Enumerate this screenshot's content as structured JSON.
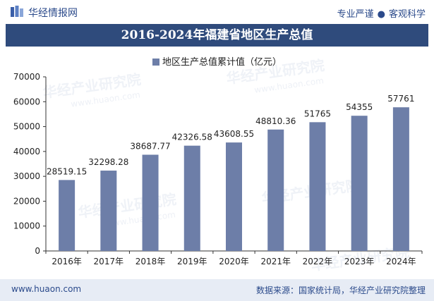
{
  "header": {
    "brand": "华经情报网",
    "tagline_left": "专业严谨",
    "tagline_right": "客观科学"
  },
  "watermark": {
    "text": "华经产业研究院",
    "url": "www.huaon.com"
  },
  "footer": {
    "site": "www.huaon.com",
    "source": "数据来源：国家统计局，华经产业研究院整理"
  },
  "colors": {
    "bar": "#6d7ea8",
    "title_bg": "#2f4b7c",
    "brand": "#2b4a8b"
  },
  "chart_data": {
    "type": "bar",
    "title": "2016-2024年福建省地区生产总值",
    "legend_position": "top-center",
    "categories": [
      "2016年",
      "2017年",
      "2018年",
      "2019年",
      "2020年",
      "2021年",
      "2022年",
      "2023年",
      "2024年"
    ],
    "series": [
      {
        "name": "地区生产总值累计值（亿元）",
        "values": [
          28519.15,
          32298.28,
          38687.77,
          42326.58,
          43608.55,
          48810.36,
          51765,
          54355,
          57761
        ],
        "labels": [
          "28519.15",
          "32298.28",
          "38687.77",
          "42326.58",
          "43608.55",
          "48810.36",
          "51765",
          "54355",
          "57761"
        ]
      }
    ],
    "y_ticks": [
      "0",
      "10000",
      "20000",
      "30000",
      "40000",
      "50000",
      "60000",
      "70000"
    ],
    "ylim": [
      0,
      70000
    ],
    "grid": false
  }
}
